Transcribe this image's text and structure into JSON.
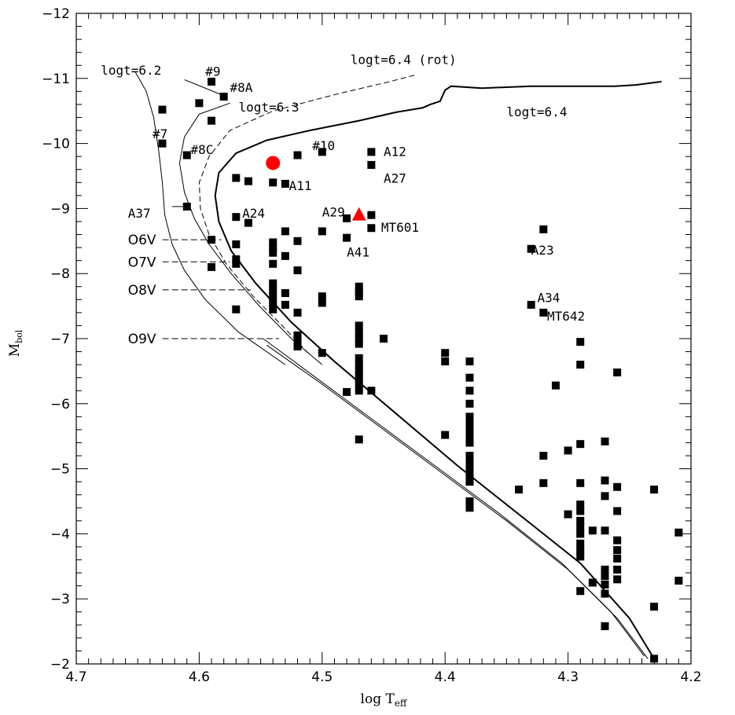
{
  "chart_data": {
    "type": "scatter",
    "title": "",
    "xlabel": "log T",
    "xlabel_sub": "eff",
    "ylabel": "M",
    "ylabel_sub": "bol",
    "xlim": [
      4.7,
      4.2
    ],
    "ylim": [
      -2,
      -12
    ],
    "x_ticks": [
      4.7,
      4.6,
      4.5,
      4.4,
      4.3,
      4.2
    ],
    "x_tick_labels": [
      "4.7",
      "4.6",
      "4.5",
      "4.4",
      "4.3",
      "4.2"
    ],
    "y_ticks": [
      -2,
      -3,
      -4,
      -5,
      -6,
      -7,
      -8,
      -9,
      -10,
      -11,
      -12
    ],
    "y_tick_labels": [
      "−2",
      "−3",
      "−4",
      "−5",
      "−6",
      "−7",
      "−8",
      "−9",
      "−10",
      "−11",
      "−12"
    ],
    "grid": false,
    "colors": {
      "stars": "#000000",
      "highlight": "#ff0000"
    },
    "points": [
      {
        "x": 4.63,
        "y": -10.52
      },
      {
        "x": 4.6,
        "y": -10.62
      },
      {
        "x": 4.59,
        "y": -10.95
      },
      {
        "x": 4.58,
        "y": -10.72
      },
      {
        "x": 4.63,
        "y": -10.0
      },
      {
        "x": 4.59,
        "y": -10.35
      },
      {
        "x": 4.61,
        "y": -9.82
      },
      {
        "x": 4.52,
        "y": -9.82
      },
      {
        "x": 4.5,
        "y": -9.87
      },
      {
        "x": 4.46,
        "y": -9.87
      },
      {
        "x": 4.46,
        "y": -9.67
      },
      {
        "x": 4.57,
        "y": -9.47
      },
      {
        "x": 4.56,
        "y": -9.42
      },
      {
        "x": 4.54,
        "y": -9.4
      },
      {
        "x": 4.53,
        "y": -9.38
      },
      {
        "x": 4.61,
        "y": -9.03
      },
      {
        "x": 4.57,
        "y": -8.87
      },
      {
        "x": 4.56,
        "y": -8.78
      },
      {
        "x": 4.48,
        "y": -8.85
      },
      {
        "x": 4.46,
        "y": -8.9
      },
      {
        "x": 4.46,
        "y": -8.7
      },
      {
        "x": 4.53,
        "y": -8.65
      },
      {
        "x": 4.5,
        "y": -8.65
      },
      {
        "x": 4.48,
        "y": -8.55
      },
      {
        "x": 4.52,
        "y": -8.5
      },
      {
        "x": 4.54,
        "y": -8.48
      },
      {
        "x": 4.59,
        "y": -8.52
      },
      {
        "x": 4.57,
        "y": -8.45
      },
      {
        "x": 4.54,
        "y": -8.4
      },
      {
        "x": 4.54,
        "y": -8.32
      },
      {
        "x": 4.53,
        "y": -8.27
      },
      {
        "x": 4.57,
        "y": -8.22
      },
      {
        "x": 4.57,
        "y": -8.15
      },
      {
        "x": 4.54,
        "y": -8.15
      },
      {
        "x": 4.59,
        "y": -8.1
      },
      {
        "x": 4.52,
        "y": -8.05
      },
      {
        "x": 4.54,
        "y": -7.85
      },
      {
        "x": 4.54,
        "y": -7.75
      },
      {
        "x": 4.53,
        "y": -7.7
      },
      {
        "x": 4.54,
        "y": -7.65
      },
      {
        "x": 4.5,
        "y": -7.65
      },
      {
        "x": 4.54,
        "y": -7.55
      },
      {
        "x": 4.53,
        "y": -7.52
      },
      {
        "x": 4.5,
        "y": -7.55
      },
      {
        "x": 4.57,
        "y": -7.45
      },
      {
        "x": 4.54,
        "y": -7.45
      },
      {
        "x": 4.52,
        "y": -7.4
      },
      {
        "x": 4.47,
        "y": -7.8
      },
      {
        "x": 4.47,
        "y": -7.72
      },
      {
        "x": 4.47,
        "y": -7.65
      },
      {
        "x": 4.47,
        "y": -7.2
      },
      {
        "x": 4.47,
        "y": -7.1
      },
      {
        "x": 4.47,
        "y": -7.0
      },
      {
        "x": 4.52,
        "y": -7.05
      },
      {
        "x": 4.52,
        "y": -6.95
      },
      {
        "x": 4.52,
        "y": -6.88
      },
      {
        "x": 4.45,
        "y": -7.0
      },
      {
        "x": 4.47,
        "y": -6.92
      },
      {
        "x": 4.5,
        "y": -6.78
      },
      {
        "x": 4.47,
        "y": -6.7
      },
      {
        "x": 4.47,
        "y": -6.6
      },
      {
        "x": 4.47,
        "y": -6.5
      },
      {
        "x": 4.47,
        "y": -6.4
      },
      {
        "x": 4.47,
        "y": -6.3
      },
      {
        "x": 4.47,
        "y": -6.2
      },
      {
        "x": 4.48,
        "y": -6.18
      },
      {
        "x": 4.46,
        "y": -6.2
      },
      {
        "x": 4.47,
        "y": -5.45
      },
      {
        "x": 4.4,
        "y": -6.78
      },
      {
        "x": 4.4,
        "y": -6.65
      },
      {
        "x": 4.4,
        "y": -5.52
      },
      {
        "x": 4.38,
        "y": -6.65
      },
      {
        "x": 4.38,
        "y": -6.4
      },
      {
        "x": 4.38,
        "y": -6.2
      },
      {
        "x": 4.38,
        "y": -6.0
      },
      {
        "x": 4.38,
        "y": -5.8
      },
      {
        "x": 4.38,
        "y": -5.7
      },
      {
        "x": 4.38,
        "y": -5.6
      },
      {
        "x": 4.38,
        "y": -5.5
      },
      {
        "x": 4.38,
        "y": -5.4
      },
      {
        "x": 4.38,
        "y": -5.2
      },
      {
        "x": 4.38,
        "y": -5.1
      },
      {
        "x": 4.38,
        "y": -5.0
      },
      {
        "x": 4.38,
        "y": -4.9
      },
      {
        "x": 4.38,
        "y": -4.8
      },
      {
        "x": 4.38,
        "y": -4.5
      },
      {
        "x": 4.38,
        "y": -4.4
      },
      {
        "x": 4.32,
        "y": -8.68
      },
      {
        "x": 4.33,
        "y": -8.38
      },
      {
        "x": 4.33,
        "y": -7.52
      },
      {
        "x": 4.32,
        "y": -7.4
      },
      {
        "x": 4.29,
        "y": -6.95
      },
      {
        "x": 4.29,
        "y": -6.6
      },
      {
        "x": 4.31,
        "y": -6.28
      },
      {
        "x": 4.26,
        "y": -6.48
      },
      {
        "x": 4.27,
        "y": -5.42
      },
      {
        "x": 4.29,
        "y": -5.38
      },
      {
        "x": 4.3,
        "y": -5.28
      },
      {
        "x": 4.32,
        "y": -5.2
      },
      {
        "x": 4.32,
        "y": -4.78
      },
      {
        "x": 4.34,
        "y": -4.68
      },
      {
        "x": 4.29,
        "y": -4.78
      },
      {
        "x": 4.27,
        "y": -4.82
      },
      {
        "x": 4.26,
        "y": -4.72
      },
      {
        "x": 4.27,
        "y": -4.58
      },
      {
        "x": 4.29,
        "y": -4.45
      },
      {
        "x": 4.29,
        "y": -4.35
      },
      {
        "x": 4.26,
        "y": -4.35
      },
      {
        "x": 4.3,
        "y": -4.3
      },
      {
        "x": 4.29,
        "y": -4.2
      },
      {
        "x": 4.29,
        "y": -4.1
      },
      {
        "x": 4.28,
        "y": -4.05
      },
      {
        "x": 4.27,
        "y": -4.05
      },
      {
        "x": 4.29,
        "y": -4.0
      },
      {
        "x": 4.26,
        "y": -3.9
      },
      {
        "x": 4.29,
        "y": -3.85
      },
      {
        "x": 4.29,
        "y": -3.75
      },
      {
        "x": 4.26,
        "y": -3.75
      },
      {
        "x": 4.29,
        "y": -3.65
      },
      {
        "x": 4.26,
        "y": -3.62
      },
      {
        "x": 4.27,
        "y": -3.45
      },
      {
        "x": 4.26,
        "y": -3.45
      },
      {
        "x": 4.27,
        "y": -3.35
      },
      {
        "x": 4.26,
        "y": -3.3
      },
      {
        "x": 4.28,
        "y": -3.25
      },
      {
        "x": 4.27,
        "y": -3.22
      },
      {
        "x": 4.29,
        "y": -3.12
      },
      {
        "x": 4.27,
        "y": -3.08
      },
      {
        "x": 4.23,
        "y": -4.68
      },
      {
        "x": 4.21,
        "y": -4.02
      },
      {
        "x": 4.21,
        "y": -3.28
      },
      {
        "x": 4.23,
        "y": -2.88
      },
      {
        "x": 4.27,
        "y": -2.58
      },
      {
        "x": 4.23,
        "y": -2.08
      }
    ],
    "highlights": [
      {
        "shape": "circle",
        "x": 4.54,
        "y": -9.7
      },
      {
        "shape": "triangle",
        "x": 4.47,
        "y": -8.9
      }
    ],
    "isochrones": [
      {
        "label": "logt=6.2",
        "style": "solid",
        "points": [
          [
            4.652,
            -11.1
          ],
          [
            4.643,
            -10.8
          ],
          [
            4.637,
            -10.4
          ],
          [
            4.633,
            -9.9
          ],
          [
            4.63,
            -9.4
          ],
          [
            4.628,
            -8.9
          ],
          [
            4.622,
            -8.45
          ],
          [
            4.612,
            -8.05
          ],
          [
            4.595,
            -7.6
          ],
          [
            4.568,
            -7.1
          ],
          [
            4.53,
            -6.6
          ]
        ]
      },
      {
        "label": "logt=6.3",
        "style": "solid",
        "points": [
          [
            4.575,
            -10.62
          ],
          [
            4.6,
            -10.45
          ],
          [
            4.612,
            -10.1
          ],
          [
            4.616,
            -9.7
          ],
          [
            4.612,
            -9.25
          ],
          [
            4.604,
            -8.85
          ],
          [
            4.592,
            -8.45
          ],
          [
            4.574,
            -8.0
          ],
          [
            4.551,
            -7.5
          ],
          [
            4.525,
            -7.0
          ],
          [
            4.5,
            -6.6
          ]
        ]
      },
      {
        "label": "logt=6.4 (rot)",
        "style": "dashed",
        "points": [
          [
            4.425,
            -11.05
          ],
          [
            4.445,
            -10.95
          ],
          [
            4.49,
            -10.75
          ],
          [
            4.54,
            -10.5
          ],
          [
            4.575,
            -10.2
          ],
          [
            4.592,
            -9.8
          ],
          [
            4.6,
            -9.4
          ],
          [
            4.599,
            -9.0
          ],
          [
            4.592,
            -8.6
          ],
          [
            4.578,
            -8.15
          ],
          [
            4.556,
            -7.65
          ],
          [
            4.53,
            -7.15
          ],
          [
            4.51,
            -6.75
          ]
        ]
      },
      {
        "label": "logt=6.4",
        "style": "bold",
        "points": [
          [
            4.224,
            -10.95
          ],
          [
            4.245,
            -10.9
          ],
          [
            4.262,
            -10.88
          ],
          [
            4.29,
            -10.88
          ],
          [
            4.33,
            -10.88
          ],
          [
            4.37,
            -10.85
          ],
          [
            4.395,
            -10.88
          ],
          [
            4.4,
            -10.82
          ],
          [
            4.404,
            -10.65
          ],
          [
            4.412,
            -10.6
          ],
          [
            4.418,
            -10.55
          ],
          [
            4.44,
            -10.48
          ],
          [
            4.47,
            -10.35
          ],
          [
            4.51,
            -10.2
          ],
          [
            4.545,
            -10.05
          ],
          [
            4.57,
            -9.85
          ],
          [
            4.584,
            -9.55
          ],
          [
            4.587,
            -9.2
          ],
          [
            4.584,
            -8.8
          ],
          [
            4.574,
            -8.35
          ],
          [
            4.554,
            -7.85
          ],
          [
            4.525,
            -7.25
          ],
          [
            4.49,
            -6.65
          ],
          [
            4.44,
            -5.85
          ],
          [
            4.39,
            -5.05
          ],
          [
            4.33,
            -4.15
          ],
          [
            4.29,
            -3.55
          ],
          [
            4.25,
            -2.7
          ],
          [
            4.23,
            -2.08
          ]
        ]
      }
    ],
    "zams_lines": [
      {
        "points": [
          [
            4.545,
            -6.9
          ],
          [
            4.5,
            -6.3
          ],
          [
            4.45,
            -5.6
          ],
          [
            4.4,
            -4.9
          ],
          [
            4.35,
            -4.2
          ],
          [
            4.3,
            -3.45
          ],
          [
            4.26,
            -2.7
          ],
          [
            4.235,
            -2.08
          ]
        ]
      },
      {
        "points": [
          [
            4.548,
            -7.0
          ],
          [
            4.505,
            -6.4
          ],
          [
            4.455,
            -5.7
          ],
          [
            4.405,
            -5.0
          ],
          [
            4.355,
            -4.3
          ],
          [
            4.305,
            -3.55
          ],
          [
            4.265,
            -2.8
          ],
          [
            4.238,
            -2.12
          ]
        ]
      }
    ],
    "spectral_types": [
      {
        "label": "O6V",
        "y": -8.52,
        "x_end": 4.582,
        "text_x": 4.658
      },
      {
        "label": "O7V",
        "y": -8.18,
        "x_end": 4.575,
        "text_x": 4.658
      },
      {
        "label": "O8V",
        "y": -7.75,
        "x_end": 4.558,
        "text_x": 4.658
      },
      {
        "label": "O9V",
        "y": -7.0,
        "x_end": 4.535,
        "text_x": 4.658
      }
    ],
    "annotations": [
      {
        "text": "logt=6.2",
        "x": 4.68,
        "y": -11.12,
        "anchor": "start"
      },
      {
        "text": "#9",
        "x": 4.595,
        "y": -11.1,
        "anchor": "start"
      },
      {
        "text": "#8A",
        "x": 4.575,
        "y": -10.85,
        "anchor": "start"
      },
      {
        "text": "logt=6.3",
        "x": 4.568,
        "y": -10.55,
        "anchor": "start"
      },
      {
        "text": "logt=6.4 (rot)",
        "x": 4.477,
        "y": -11.28,
        "anchor": "start"
      },
      {
        "text": "logt=6.4",
        "x": 4.35,
        "y": -10.48,
        "anchor": "start"
      },
      {
        "text": "#7",
        "x": 4.638,
        "y": -10.14,
        "anchor": "start"
      },
      {
        "text": "#8C",
        "x": 4.607,
        "y": -9.9,
        "anchor": "start"
      },
      {
        "text": "#10",
        "x": 4.508,
        "y": -9.96,
        "anchor": "start"
      },
      {
        "text": "A12",
        "x": 4.45,
        "y": -9.87,
        "anchor": "start"
      },
      {
        "text": "A27",
        "x": 4.45,
        "y": -9.46,
        "anchor": "start"
      },
      {
        "text": "A11",
        "x": 4.527,
        "y": -9.34,
        "anchor": "start"
      },
      {
        "text": "A29",
        "x": 4.5,
        "y": -8.94,
        "anchor": "start"
      },
      {
        "text": "A37",
        "x": 4.658,
        "y": -8.92,
        "anchor": "start"
      },
      {
        "text": "A24",
        "x": 4.565,
        "y": -8.92,
        "anchor": "start"
      },
      {
        "text": "MT601",
        "x": 4.452,
        "y": -8.7,
        "anchor": "start"
      },
      {
        "text": "A41",
        "x": 4.48,
        "y": -8.32,
        "anchor": "start"
      },
      {
        "text": "A23",
        "x": 4.33,
        "y": -8.35,
        "anchor": "start"
      },
      {
        "text": "A34",
        "x": 4.325,
        "y": -7.62,
        "anchor": "start"
      },
      {
        "text": "MT642",
        "x": 4.317,
        "y": -7.34,
        "anchor": "start"
      }
    ]
  }
}
